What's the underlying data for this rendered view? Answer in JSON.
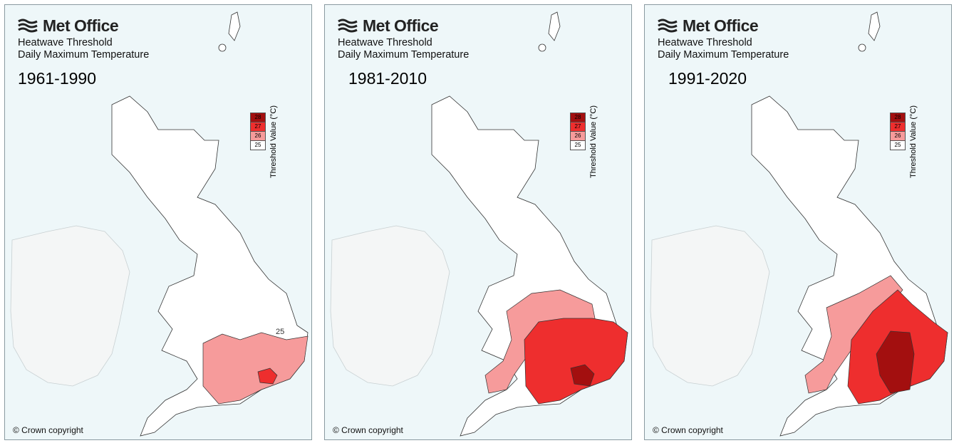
{
  "brand": {
    "name": "Met Office"
  },
  "title_line1": "Heatwave Threshold",
  "title_line2": "Daily Maximum Temperature",
  "copyright": "© Crown copyright",
  "legend": {
    "title": "Threshold Value (°C)",
    "entries": [
      {
        "value": "28",
        "color": "#a30f0f"
      },
      {
        "value": "27",
        "color": "#ee2e2e"
      },
      {
        "value": "26",
        "color": "#f69b9b"
      },
      {
        "value": "25",
        "color": "#ffffff"
      }
    ]
  },
  "maps": [
    {
      "period": "1961-1990",
      "summary": "Threshold 26°C across south-east and central southern England with a 27°C area around London; 25°C elsewhere."
    },
    {
      "period": "1981-2010",
      "summary": "27°C across most of East Anglia, south-east England and the Midlands edge; 28°C around London; 26°C on western and northern fringes of that region."
    },
    {
      "period": "1991-2020",
      "summary": "28°C over London, Hertfordshire, Bedfordshire and Cambridgeshire; 27°C across much of eastern and southern England; 26°C on the western and northern fringes."
    }
  ]
}
